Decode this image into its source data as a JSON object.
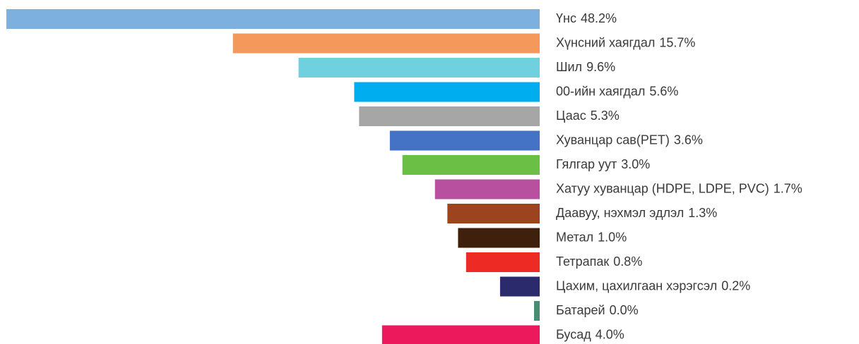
{
  "chart_data": {
    "type": "bar",
    "orientation": "horizontal",
    "categories": [
      "Үнс",
      "Хүнсний хаягдал",
      "Шил",
      "00-ийн хаягдал",
      "Цаас",
      "Хуванцар сав(PET)",
      "Гялгар уут",
      "Хатуу хуванцар (HDPE, LDPE, PVC)",
      "Даавуу, нэхмэл эдлэл",
      "Метал",
      "Тетрапак",
      "Цахим, цахилгаан хэрэгсэл",
      "Батарей",
      "Бусад"
    ],
    "values": [
      48.2,
      15.7,
      9.6,
      5.6,
      5.3,
      3.6,
      3.0,
      1.7,
      1.3,
      1.0,
      0.8,
      0.2,
      0.0,
      4.0
    ],
    "value_labels": [
      "48.2%",
      "15.7%",
      "9.6%",
      "5.6%",
      "5.3%",
      "3.6%",
      "3.0%",
      "1.7%",
      "1.3%",
      "1.0%",
      "0.8%",
      "0.2%",
      "0.0%",
      "4.0%"
    ],
    "colors": [
      "#7eb0df",
      "#f4995b",
      "#6fd0de",
      "#00aeef",
      "#a6a6a6",
      "#4472c4",
      "#6bbf45",
      "#b94f9f",
      "#9c4320",
      "#3f200d",
      "#ee2a24",
      "#2a2a6c",
      "#4a8c73",
      "#ec1a5d"
    ]
  }
}
